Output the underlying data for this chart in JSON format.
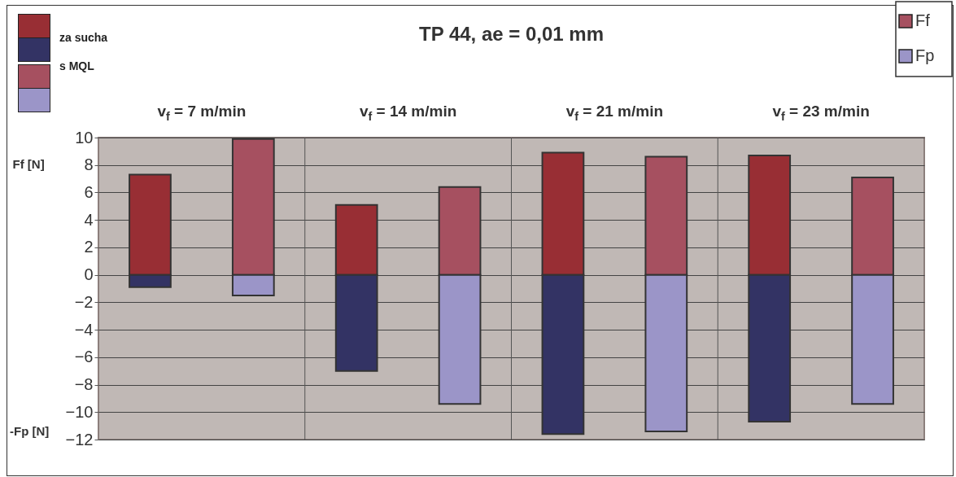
{
  "chart_data": {
    "type": "bar",
    "title": "TP 44, ae = 0,01 mm",
    "ylabel": "Ff [N]",
    "categories": [
      null,
      null,
      null,
      null,
      null,
      null,
      null,
      null
    ],
    "series": [
      {
        "name": "Ff",
        "colors": [
          "#982e34",
          "#a65060",
          "#982e34",
          "#a65060",
          "#982e34",
          "#a65060",
          "#982e34",
          "#a65060"
        ],
        "values": [
          7.3,
          9.9,
          5.1,
          6.4,
          8.9,
          8.6,
          8.7,
          7.1
        ]
      },
      {
        "name": "Fp",
        "colors": [
          "#333364",
          "#9b95c8",
          "#333364",
          "#9b95c8",
          "#333364",
          "#9b95c8",
          "#333364",
          "#9b95c8"
        ],
        "values": [
          -0.9,
          -1.5,
          -7.0,
          -9.4,
          -11.6,
          -11.4,
          -10.7,
          -9.4
        ]
      }
    ],
    "annotations": [
      "za sucha",
      "s MQL",
      "v$_{f}$ = 7 m/min",
      "v$_{f}$ = 14 m/min",
      "v$_{f}$ = 21 m/min",
      "v$_{f}$ = 23 m/min",
      "-Fp [N]"
    ],
    "stacked": true,
    "ylim": [
      -12,
      10
    ],
    "yticks": [
      -12,
      -10,
      -8,
      -6,
      -4,
      -2,
      0,
      2,
      4,
      6,
      8,
      10
    ],
    "grid": true,
    "legend": "top right"
  }
}
